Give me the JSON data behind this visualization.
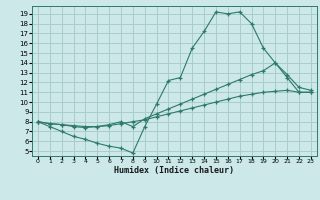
{
  "xlabel": "Humidex (Indice chaleur)",
  "bg_color": "#cce8e8",
  "grid_color": "#aacccc",
  "line_color": "#2d7a6a",
  "xlim": [
    -0.5,
    23.5
  ],
  "ylim": [
    4.5,
    19.8
  ],
  "xticks": [
    0,
    1,
    2,
    3,
    4,
    5,
    6,
    7,
    8,
    9,
    10,
    11,
    12,
    13,
    14,
    15,
    16,
    17,
    18,
    19,
    20,
    21,
    22,
    23
  ],
  "yticks": [
    5,
    6,
    7,
    8,
    9,
    10,
    11,
    12,
    13,
    14,
    15,
    16,
    17,
    18,
    19
  ],
  "line1_x": [
    0,
    1,
    2,
    3,
    4,
    5,
    6,
    7,
    8,
    9,
    10,
    11,
    12,
    13,
    14,
    15,
    16,
    17,
    18,
    19,
    20,
    21,
    22,
    23
  ],
  "line1_y": [
    8.0,
    7.5,
    7.0,
    6.5,
    6.2,
    5.8,
    5.5,
    5.3,
    4.8,
    7.5,
    9.8,
    12.2,
    12.5,
    15.5,
    17.2,
    19.2,
    19.0,
    19.2,
    18.0,
    15.5,
    14.0,
    12.5,
    11.0,
    11.0
  ],
  "line2_x": [
    0,
    1,
    2,
    3,
    4,
    5,
    6,
    7,
    8,
    9,
    10,
    11,
    12,
    13,
    14,
    15,
    16,
    17,
    18,
    19,
    20,
    21,
    22,
    23
  ],
  "line2_y": [
    8.0,
    7.8,
    7.7,
    7.6,
    7.5,
    7.5,
    7.6,
    7.8,
    8.0,
    8.2,
    8.5,
    8.8,
    9.1,
    9.4,
    9.7,
    10.0,
    10.3,
    10.6,
    10.8,
    11.0,
    11.1,
    11.2,
    11.0,
    11.0
  ],
  "line3_x": [
    0,
    1,
    2,
    3,
    4,
    5,
    6,
    7,
    8,
    9,
    10,
    11,
    12,
    13,
    14,
    15,
    16,
    17,
    18,
    19,
    20,
    21,
    22,
    23
  ],
  "line3_y": [
    8.0,
    7.8,
    7.7,
    7.5,
    7.4,
    7.5,
    7.7,
    8.0,
    7.5,
    8.3,
    8.8,
    9.3,
    9.8,
    10.3,
    10.8,
    11.3,
    11.8,
    12.3,
    12.8,
    13.2,
    14.0,
    12.8,
    11.5,
    11.2
  ]
}
